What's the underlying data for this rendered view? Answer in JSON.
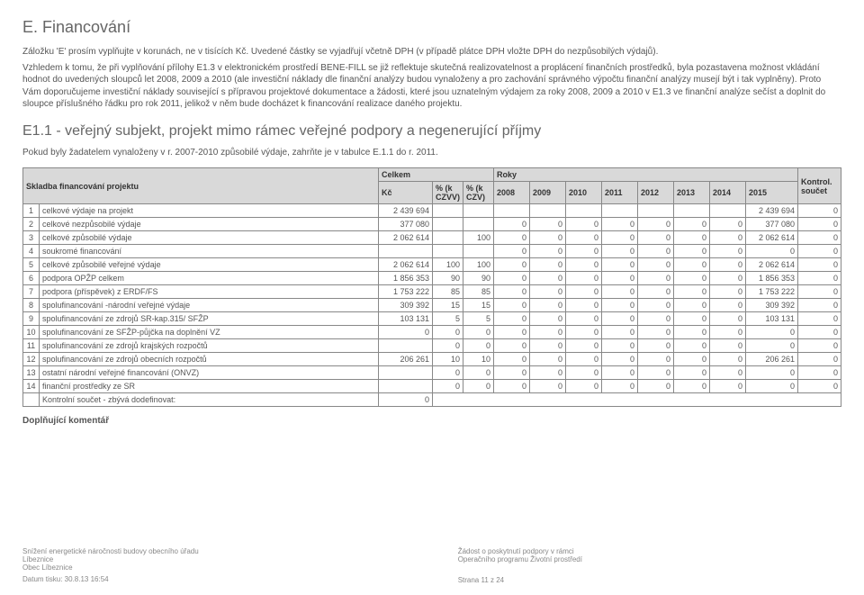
{
  "title": "E. Financování",
  "intro1": "Záložku 'E' prosím vyplňujte v korunách, ne v tisících Kč. Uvedené částky se vyjadřují včetně DPH (v případě plátce DPH vložte DPH do nezpůsobilých výdajů).",
  "intro2": "Vzhledem k tomu, že při vyplňování přílohy E1.3 v elektronickém prostředí BENE-FILL se již reflektuje skutečná realizovatelnost a proplácení finančních prostředků, byla pozastavena možnost vkládání hodnot do uvedených sloupců let 2008, 2009 a 2010 (ale investiční náklady dle finanční analýzy budou vynaloženy a pro zachování správného výpočtu finanční analýzy musejí být i tak vyplněny). Proto Vám doporučujeme investiční náklady související s přípravou projektové dokumentace a žádosti, které jsou uznatelným výdajem za roky 2008, 2009 a 2010 v E1.3 ve finanční analýze sečíst a doplnit do sloupce příslušného řádku pro rok 2011, jelikož v něm bude docházet k financování realizace daného projektu.",
  "subtitle": "E1.1 - veřejný subjekt, projekt mimo rámec veřejné podpory a negenerující příjmy",
  "subintro": "Pokud byly žadatelem vynaloženy v r. 2007-2010 způsobilé výdaje, zahrňte je v tabulce E.1.1 do r. 2011.",
  "table": {
    "headers": {
      "main": "Skladba financování projektu",
      "celkem": "Celkem",
      "roky": "Roky",
      "kontrol": "Kontrol. součet",
      "kc": "Kč",
      "pct_czvv": "% (k CZVV)",
      "pct_czv": "% (k CZV)",
      "years": [
        "2008",
        "2009",
        "2010",
        "2011",
        "2012",
        "2013",
        "2014",
        "2015"
      ]
    },
    "rows": [
      {
        "n": "1",
        "label": "celkové výdaje na projekt",
        "kc": "2 439 694",
        "p1": "",
        "p2": "",
        "yrs": [
          "",
          "",
          "",
          "",
          "",
          "",
          "",
          "2 439 694"
        ],
        "k": "0"
      },
      {
        "n": "2",
        "label": "celkové nezpůsobilé výdaje",
        "kc": "377 080",
        "p1": "",
        "p2": "",
        "yrs": [
          "0",
          "0",
          "0",
          "0",
          "0",
          "0",
          "0",
          "377 080"
        ],
        "k": "0"
      },
      {
        "n": "3",
        "label": "celkové způsobilé výdaje",
        "kc": "2 062 614",
        "p1": "",
        "p2": "100",
        "yrs": [
          "0",
          "0",
          "0",
          "0",
          "0",
          "0",
          "0",
          "2 062 614"
        ],
        "k": "0"
      },
      {
        "n": "4",
        "label": "soukromé financování",
        "kc": "",
        "p1": "",
        "p2": "",
        "yrs": [
          "0",
          "0",
          "0",
          "0",
          "0",
          "0",
          "0",
          "0"
        ],
        "k": "0"
      },
      {
        "n": "5",
        "label": "celkové způsobilé veřejné výdaje",
        "kc": "2 062 614",
        "p1": "100",
        "p2": "100",
        "yrs": [
          "0",
          "0",
          "0",
          "0",
          "0",
          "0",
          "0",
          "2 062 614"
        ],
        "k": "0"
      },
      {
        "n": "6",
        "label": "podpora OPŽP celkem",
        "kc": "1 856 353",
        "p1": "90",
        "p2": "90",
        "yrs": [
          "0",
          "0",
          "0",
          "0",
          "0",
          "0",
          "0",
          "1 856 353"
        ],
        "k": "0"
      },
      {
        "n": "7",
        "label": "podpora (příspěvek) z ERDF/FS",
        "kc": "1 753 222",
        "p1": "85",
        "p2": "85",
        "yrs": [
          "0",
          "0",
          "0",
          "0",
          "0",
          "0",
          "0",
          "1 753 222"
        ],
        "k": "0"
      },
      {
        "n": "8",
        "label": "spolufinancování -národní veřejné výdaje",
        "kc": "309 392",
        "p1": "15",
        "p2": "15",
        "yrs": [
          "0",
          "0",
          "0",
          "0",
          "0",
          "0",
          "0",
          "309 392"
        ],
        "k": "0"
      },
      {
        "n": "9",
        "label": "spolufinancování ze zdrojů SR-kap.315/ SFŽP",
        "kc": "103 131",
        "p1": "5",
        "p2": "5",
        "yrs": [
          "0",
          "0",
          "0",
          "0",
          "0",
          "0",
          "0",
          "103 131"
        ],
        "k": "0"
      },
      {
        "n": "10",
        "label": "spolufinancování ze SFŽP-půjčka na doplnění VZ",
        "kc": "0",
        "p1": "0",
        "p2": "0",
        "yrs": [
          "0",
          "0",
          "0",
          "0",
          "0",
          "0",
          "0",
          "0"
        ],
        "k": "0"
      },
      {
        "n": "11",
        "label": "spolufinancování ze zdrojů krajských rozpočtů",
        "kc": "",
        "p1": "0",
        "p2": "0",
        "yrs": [
          "0",
          "0",
          "0",
          "0",
          "0",
          "0",
          "0",
          "0"
        ],
        "k": "0"
      },
      {
        "n": "12",
        "label": "spolufinancování ze zdrojů obecních rozpočtů",
        "kc": "206 261",
        "p1": "10",
        "p2": "10",
        "yrs": [
          "0",
          "0",
          "0",
          "0",
          "0",
          "0",
          "0",
          "206 261"
        ],
        "k": "0"
      },
      {
        "n": "13",
        "label": "ostatní národní veřejné financování (ONVZ)",
        "kc": "",
        "p1": "0",
        "p2": "0",
        "yrs": [
          "0",
          "0",
          "0",
          "0",
          "0",
          "0",
          "0",
          "0"
        ],
        "k": "0"
      },
      {
        "n": "14",
        "label": "finanční prostředky ze SR",
        "kc": "",
        "p1": "0",
        "p2": "0",
        "yrs": [
          "0",
          "0",
          "0",
          "0",
          "0",
          "0",
          "0",
          "0"
        ],
        "k": "0"
      }
    ],
    "totalLabel": "Kontrolní součet - zbývá dodefinovat:",
    "totalVal": "0"
  },
  "supp": "Doplňující komentář",
  "footer": {
    "l1": "Snížení energetické náročnosti budovy obecního úřadu",
    "l2": "Líbeznice",
    "l3": "Obec Líbeznice",
    "l4": "Datum tisku: 30.8.13 16:54",
    "m1": "Žádost o poskytnutí podpory v rámci",
    "m2": "Operačního programu Životní prostředí",
    "r": "Strana 11 z 24"
  }
}
